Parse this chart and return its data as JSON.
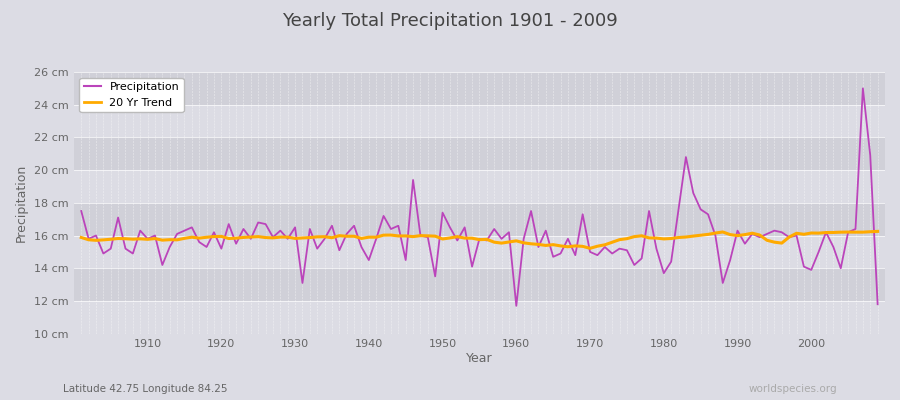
{
  "title": "Yearly Total Precipitation 1901 - 2009",
  "xlabel": "Year",
  "ylabel": "Precipitation",
  "subtitle": "Latitude 42.75 Longitude 84.25",
  "watermark": "worldspecies.org",
  "years": [
    1901,
    1902,
    1903,
    1904,
    1905,
    1906,
    1907,
    1908,
    1909,
    1910,
    1911,
    1912,
    1913,
    1914,
    1915,
    1916,
    1917,
    1918,
    1919,
    1920,
    1921,
    1922,
    1923,
    1924,
    1925,
    1926,
    1927,
    1928,
    1929,
    1930,
    1931,
    1932,
    1933,
    1934,
    1935,
    1936,
    1937,
    1938,
    1939,
    1940,
    1941,
    1942,
    1943,
    1944,
    1945,
    1946,
    1947,
    1948,
    1949,
    1950,
    1951,
    1952,
    1953,
    1954,
    1955,
    1956,
    1957,
    1958,
    1959,
    1960,
    1961,
    1962,
    1963,
    1964,
    1965,
    1966,
    1967,
    1968,
    1969,
    1970,
    1971,
    1972,
    1973,
    1974,
    1975,
    1976,
    1977,
    1978,
    1979,
    1980,
    1981,
    1982,
    1983,
    1984,
    1985,
    1986,
    1987,
    1988,
    1989,
    1990,
    1991,
    1992,
    1993,
    1994,
    1995,
    1996,
    1997,
    1998,
    1999,
    2000,
    2001,
    2002,
    2003,
    2004,
    2005,
    2006,
    2007,
    2008,
    2009
  ],
  "precipitation": [
    17.5,
    15.8,
    16.0,
    14.9,
    15.2,
    17.1,
    15.2,
    14.9,
    16.3,
    15.8,
    16.0,
    14.2,
    15.3,
    16.1,
    16.3,
    16.5,
    15.6,
    15.3,
    16.2,
    15.2,
    16.7,
    15.5,
    16.4,
    15.8,
    16.8,
    16.7,
    15.9,
    16.3,
    15.8,
    16.5,
    13.1,
    16.4,
    15.2,
    15.8,
    16.6,
    15.1,
    16.1,
    16.6,
    15.3,
    14.5,
    15.8,
    17.2,
    16.4,
    16.6,
    14.5,
    19.4,
    16.0,
    15.9,
    13.5,
    17.4,
    16.5,
    15.7,
    16.5,
    14.1,
    15.8,
    15.7,
    16.4,
    15.8,
    16.2,
    11.7,
    15.8,
    17.5,
    15.3,
    16.3,
    14.7,
    14.9,
    15.8,
    14.8,
    17.3,
    15.0,
    14.8,
    15.3,
    14.9,
    15.2,
    15.1,
    14.2,
    14.6,
    17.5,
    15.2,
    13.7,
    14.4,
    17.6,
    20.8,
    18.6,
    17.6,
    17.3,
    16.0,
    13.1,
    14.5,
    16.3,
    15.5,
    16.1,
    15.9,
    16.1,
    16.3,
    16.2,
    15.9,
    16.0,
    14.1,
    13.9,
    15.0,
    16.2,
    15.3,
    14.0,
    16.2,
    16.4,
    25.0,
    20.9,
    11.8
  ],
  "precip_color": "#bb44bb",
  "trend_color": "#ffaa00",
  "bg_color": "#dcdce4",
  "plot_bg_dark": "#d0d0d8",
  "plot_bg_light": "#dcdce4",
  "ylim": [
    10,
    26
  ],
  "ytick_values": [
    10,
    12,
    14,
    16,
    18,
    20,
    22,
    24,
    26
  ],
  "ytick_labels": [
    "10 cm",
    "12 cm",
    "14 cm",
    "16 cm",
    "18 cm",
    "20 cm",
    "22 cm",
    "24 cm",
    "26 cm"
  ],
  "xtick_values": [
    1910,
    1920,
    1930,
    1940,
    1950,
    1960,
    1970,
    1980,
    1990,
    2000
  ],
  "trend_window": 20,
  "legend_precip": "Precipitation",
  "legend_trend": "20 Yr Trend",
  "title_color": "#444444",
  "label_color": "#666666",
  "tick_color": "#666666"
}
